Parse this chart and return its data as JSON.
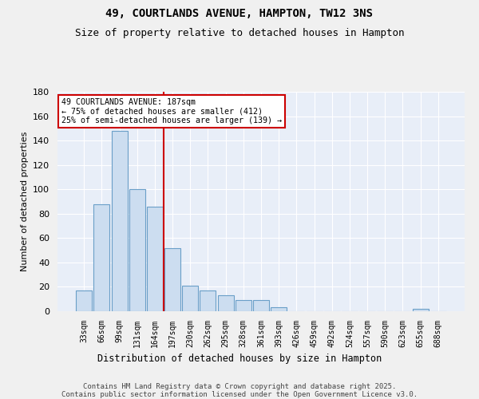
{
  "title": "49, COURTLANDS AVENUE, HAMPTON, TW12 3NS",
  "subtitle": "Size of property relative to detached houses in Hampton",
  "xlabel": "Distribution of detached houses by size in Hampton",
  "ylabel": "Number of detached properties",
  "categories": [
    "33sqm",
    "66sqm",
    "99sqm",
    "131sqm",
    "164sqm",
    "197sqm",
    "230sqm",
    "262sqm",
    "295sqm",
    "328sqm",
    "361sqm",
    "393sqm",
    "426sqm",
    "459sqm",
    "492sqm",
    "524sqm",
    "557sqm",
    "590sqm",
    "623sqm",
    "655sqm",
    "688sqm"
  ],
  "values": [
    17,
    88,
    148,
    100,
    86,
    52,
    21,
    17,
    13,
    9,
    9,
    3,
    0,
    0,
    0,
    0,
    0,
    0,
    0,
    2,
    0
  ],
  "bar_color": "#ccddf0",
  "bar_edge_color": "#6a9fc8",
  "red_line_x": 4.5,
  "annotation_text": "49 COURTLANDS AVENUE: 187sqm\n← 75% of detached houses are smaller (412)\n25% of semi-detached houses are larger (139) →",
  "annotation_box_color": "#ffffff",
  "annotation_box_edge_color": "#cc0000",
  "ylim": [
    0,
    180
  ],
  "yticks": [
    0,
    20,
    40,
    60,
    80,
    100,
    120,
    140,
    160,
    180
  ],
  "plot_bg_color": "#e8eef8",
  "fig_bg_color": "#f0f0f0",
  "footer_line1": "Contains HM Land Registry data © Crown copyright and database right 2025.",
  "footer_line2": "Contains public sector information licensed under the Open Government Licence v3.0.",
  "title_fontsize": 10,
  "subtitle_fontsize": 9,
  "grid_color": "#ffffff",
  "red_line_color": "#cc0000"
}
